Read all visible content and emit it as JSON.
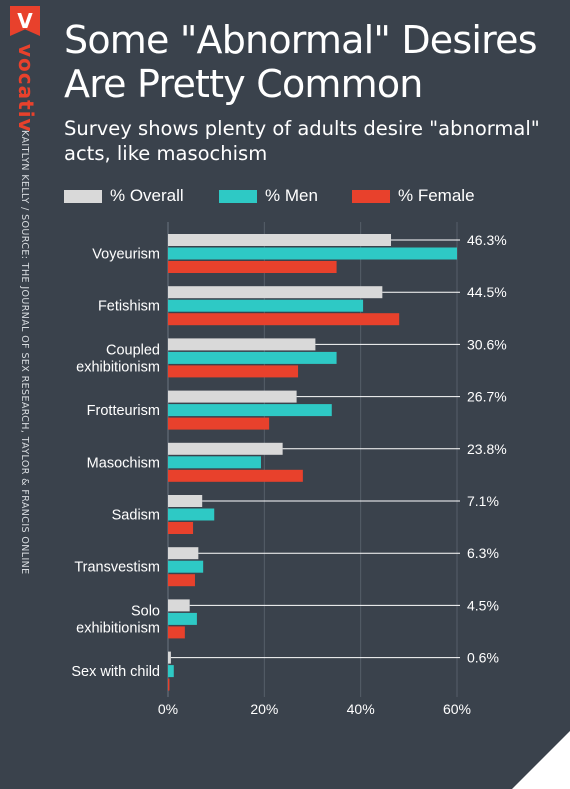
{
  "brand": {
    "logo_letter": "V",
    "logo_text": "vocativ",
    "credit": "KAITLYN KELLY / SOURCE: THE JOURNAL OF SEX RESEARCH, TAYLOR & FRANCIS ONLINE"
  },
  "header": {
    "title": "Some \"Abnormal\" Desires Are Pretty Common",
    "subtitle": "Survey shows plenty of adults desire \"abnormal\" acts, like masochism"
  },
  "colors": {
    "background": "#3a424c",
    "overall": "#d9d9d9",
    "men": "#2ec9c5",
    "female": "#e8412c",
    "brand": "#e8412c"
  },
  "chart_data": {
    "type": "bar",
    "orientation": "horizontal",
    "categories": [
      [
        "Voyeurism"
      ],
      [
        "Fetishism"
      ],
      [
        "Coupled",
        "exhibitionism"
      ],
      [
        "Frotteurism"
      ],
      [
        "Masochism"
      ],
      [
        "Sadism"
      ],
      [
        "Transvestism"
      ],
      [
        "Solo",
        "exhibitionism"
      ],
      [
        "Sex with child"
      ]
    ],
    "series": [
      {
        "name": "% Overall",
        "color": "#d9d9d9",
        "values": [
          46.3,
          44.5,
          30.6,
          26.7,
          23.8,
          7.1,
          6.3,
          4.5,
          0.6
        ]
      },
      {
        "name": "% Men",
        "color": "#2ec9c5",
        "values": [
          60,
          40.5,
          35,
          34,
          19.3,
          9.6,
          7.3,
          6,
          1.2
        ]
      },
      {
        "name": "% Female",
        "color": "#e8412c",
        "values": [
          35,
          48,
          27,
          21,
          28,
          5.2,
          5.6,
          3.5,
          0.3
        ]
      }
    ],
    "overall_labels": [
      "46.3%",
      "44.5%",
      "30.6%",
      "26.7%",
      "23.8%",
      "7.1%",
      "6.3%",
      "4.5%",
      "0.6%"
    ],
    "xlim": [
      0,
      60
    ],
    "xticks": [
      0,
      20,
      40,
      60
    ],
    "xtick_labels": [
      "0%",
      "20%",
      "40%",
      "60%"
    ],
    "grid": true,
    "legend_position": "top"
  }
}
